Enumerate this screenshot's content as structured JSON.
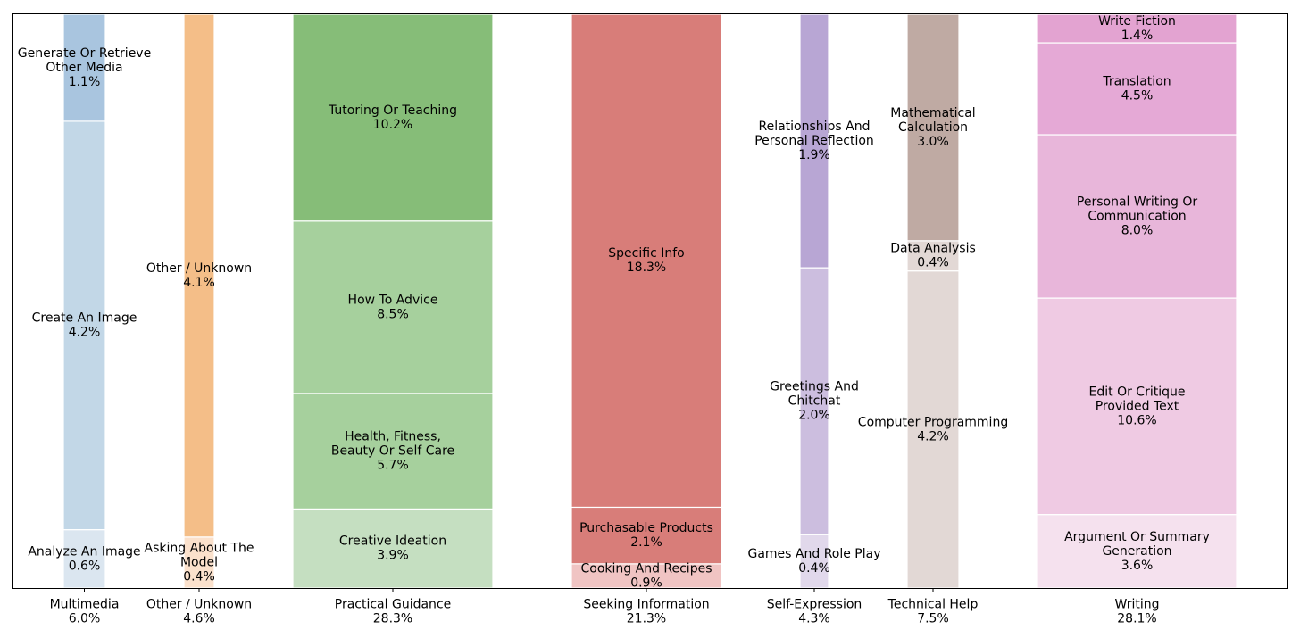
{
  "chart_data": {
    "type": "bar",
    "stacked": true,
    "variable_width": true,
    "ylim": [
      0,
      1
    ],
    "grid": false,
    "categories": [
      {
        "label": "Multimedia",
        "total_label": "6.0%",
        "width_share": 6.0,
        "segments": [
          {
            "name": "Analyze An Image",
            "label": "Analyze An Image",
            "pct_label": "0.6%",
            "value": 0.6,
            "color": "#dbe6f0"
          },
          {
            "name": "Create An Image",
            "label": "Create An Image",
            "pct_label": "4.2%",
            "value": 4.2,
            "color": "#c2d7e7"
          },
          {
            "name": "Generate Or Retrieve Other Media",
            "label": "Generate Or Retrieve\nOther Media",
            "pct_label": "1.1%",
            "value": 1.1,
            "color": "#a9c5df"
          }
        ]
      },
      {
        "label": "Other / Unknown",
        "total_label": "4.6%",
        "width_share": 4.6,
        "segments": [
          {
            "name": "Asking About The Model",
            "label": "Asking About The\nModel",
            "pct_label": "0.4%",
            "value": 0.4,
            "color": "#fbe1cc"
          },
          {
            "name": "Other / Unknown",
            "label": "Other / Unknown",
            "pct_label": "4.1%",
            "value": 4.1,
            "color": "#f4be88"
          }
        ]
      },
      {
        "label": "Practical Guidance",
        "total_label": "28.3%",
        "width_share": 28.3,
        "segments": [
          {
            "name": "Creative Ideation",
            "label": "Creative Ideation",
            "pct_label": "3.9%",
            "value": 3.9,
            "color": "#c5dfc1"
          },
          {
            "name": "Health, Fitness, Beauty Or Self Care",
            "label": "Health, Fitness,\nBeauty Or Self Care",
            "pct_label": "5.7%",
            "value": 5.7,
            "color": "#a6d09d"
          },
          {
            "name": "How To Advice",
            "label": "How To Advice",
            "pct_label": "8.5%",
            "value": 8.5,
            "color": "#a6d09d"
          },
          {
            "name": "Tutoring Or Teaching",
            "label": "Tutoring Or Teaching",
            "pct_label": "10.2%",
            "value": 10.2,
            "color": "#86bd78"
          }
        ]
      },
      {
        "label": "Seeking Information",
        "total_label": "21.3%",
        "width_share": 21.3,
        "segments": [
          {
            "name": "Cooking And Recipes",
            "label": "Cooking And Recipes",
            "pct_label": "0.9%",
            "value": 0.9,
            "color": "#f0c4c3"
          },
          {
            "name": "Purchasable Products",
            "label": "Purchasable Products",
            "pct_label": "2.1%",
            "value": 2.1,
            "color": "#d87d79"
          },
          {
            "name": "Specific Info",
            "label": "Specific Info",
            "pct_label": "18.3%",
            "value": 18.3,
            "color": "#d87d79"
          }
        ]
      },
      {
        "label": "Self-Expression",
        "total_label": "4.3%",
        "width_share": 4.3,
        "segments": [
          {
            "name": "Games And Role Play",
            "label": "Games And Role Play",
            "pct_label": "0.4%",
            "value": 0.4,
            "color": "#e1d8eb"
          },
          {
            "name": "Greetings And Chitchat",
            "label": "Greetings And\nChitchat",
            "pct_label": "2.0%",
            "value": 2.0,
            "color": "#ccbedf"
          },
          {
            "name": "Relationships And Personal Reflection",
            "label": "Relationships And\nPersonal Reflection",
            "pct_label": "1.9%",
            "value": 1.9,
            "color": "#b8a6d4"
          }
        ]
      },
      {
        "label": "Technical Help",
        "total_label": "7.5%",
        "width_share": 7.5,
        "segments": [
          {
            "name": "Computer Programming",
            "label": "Computer Programming",
            "pct_label": "4.2%",
            "value": 4.2,
            "color": "#e2d8d5"
          },
          {
            "name": "Data Analysis",
            "label": "Data Analysis",
            "pct_label": "0.4%",
            "value": 0.4,
            "color": "#e2d8d5"
          },
          {
            "name": "Mathematical Calculation",
            "label": "Mathematical\nCalculation",
            "pct_label": "3.0%",
            "value": 3.0,
            "color": "#bfaaa3"
          }
        ]
      },
      {
        "label": "Writing",
        "total_label": "28.1%",
        "width_share": 28.1,
        "segments": [
          {
            "name": "Argument Or Summary Generation",
            "label": "Argument Or Summary\nGeneration",
            "pct_label": "3.6%",
            "value": 3.6,
            "color": "#f5e1ee"
          },
          {
            "name": "Edit Or Critique Provided Text",
            "label": "Edit Or Critique\nProvided Text",
            "pct_label": "10.6%",
            "value": 10.6,
            "color": "#efcae3"
          },
          {
            "name": "Personal Writing Or Communication",
            "label": "Personal Writing Or\nCommunication",
            "pct_label": "8.0%",
            "value": 8.0,
            "color": "#e8b6da"
          },
          {
            "name": "Translation",
            "label": "Translation",
            "pct_label": "4.5%",
            "value": 4.5,
            "color": "#e5a9d6"
          },
          {
            "name": "Write Fiction",
            "label": "Write Fiction",
            "pct_label": "1.4%",
            "value": 1.4,
            "color": "#e3a3d1"
          }
        ]
      }
    ]
  }
}
